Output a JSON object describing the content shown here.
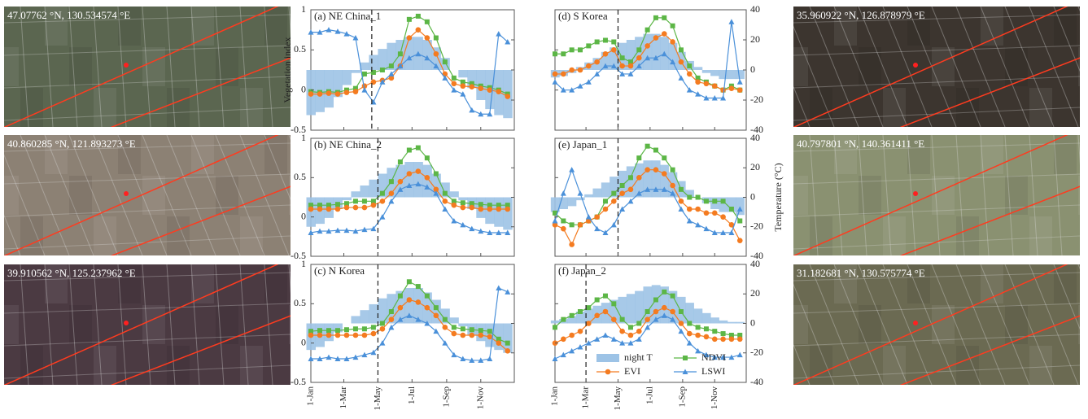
{
  "images": [
    {
      "label": "47.07762 °N, 130.534574 °E",
      "color": "#5b6650"
    },
    {
      "label": "40.860285 °N, 121.893273 °E",
      "color": "#8c8174"
    },
    {
      "label": "39.910562 °N, 125.237962 °E",
      "color": "#4b3a42"
    },
    {
      "label": "35.960922 °N, 126.878979 °E",
      "color": "#3c352f"
    },
    {
      "label": "40.797801 °N, 140.361411 °E",
      "color": "#8a9171"
    },
    {
      "label": "31.182681 °N, 130.575774 °E",
      "color": "#6b6a52"
    }
  ],
  "chart_data": [
    {
      "type": "line",
      "title": "(a) NE China_1",
      "ylabel": "Vegetation index",
      "x": [
        1,
        17,
        33,
        49,
        65,
        81,
        97,
        113,
        129,
        145,
        161,
        177,
        193,
        209,
        225,
        241,
        257,
        273,
        289,
        305,
        321,
        337,
        353
      ],
      "xlim": [
        1,
        365
      ],
      "xticks": [
        1,
        60,
        121,
        182,
        244,
        305
      ],
      "ylim": [
        -0.5,
        1
      ],
      "yticks": [
        -0.5,
        0,
        0.5,
        1
      ],
      "y2lim": [
        -40,
        40
      ],
      "y2ticks": [
        -40,
        -20,
        0,
        20,
        40
      ],
      "show_y2tick_labels": false,
      "vline": 110,
      "series": [
        {
          "type": "area",
          "axis": "y2",
          "color": "#9dc3e6",
          "values": [
            -30,
            -28,
            -25,
            -18,
            -10,
            -2,
            5,
            10,
            14,
            18,
            20,
            22,
            22,
            20,
            15,
            8,
            0,
            -5,
            -12,
            -20,
            -26,
            -30,
            -32
          ]
        },
        {
          "color": "#5cb646",
          "marker": "square",
          "values": [
            -0.02,
            -0.03,
            -0.02,
            -0.03,
            0.0,
            0.02,
            0.2,
            0.22,
            0.25,
            0.3,
            0.45,
            0.88,
            0.92,
            0.85,
            0.65,
            0.35,
            0.15,
            0.1,
            0.08,
            0.05,
            0.03,
            0.0,
            -0.05
          ]
        },
        {
          "color": "#f47b20",
          "marker": "circle",
          "values": [
            -0.05,
            -0.05,
            -0.04,
            -0.05,
            -0.03,
            -0.02,
            0.05,
            0.1,
            0.12,
            0.15,
            0.3,
            0.65,
            0.75,
            0.65,
            0.45,
            0.2,
            0.08,
            0.05,
            0.04,
            0.02,
            0.0,
            -0.02,
            -0.08
          ]
        },
        {
          "color": "#4a90d9",
          "marker": "triangle",
          "values": [
            0.72,
            0.72,
            0.75,
            0.73,
            0.7,
            0.65,
            0.0,
            -0.15,
            0.1,
            0.2,
            0.3,
            0.4,
            0.45,
            0.4,
            0.3,
            0.15,
            0.0,
            -0.05,
            -0.25,
            -0.3,
            -0.3,
            0.7,
            0.6
          ]
        }
      ]
    },
    {
      "type": "line",
      "title": "(b) NE China_2",
      "x": [
        1,
        17,
        33,
        49,
        65,
        81,
        97,
        113,
        129,
        145,
        161,
        177,
        193,
        209,
        225,
        241,
        257,
        273,
        289,
        305,
        321,
        337,
        353
      ],
      "xlim": [
        1,
        365
      ],
      "xticks": [
        1,
        60,
        121,
        182,
        244,
        305
      ],
      "ylim": [
        -0.5,
        1
      ],
      "yticks": [
        -0.5,
        0,
        0.5,
        1
      ],
      "y2lim": [
        -40,
        40
      ],
      "y2ticks": [
        -40,
        -20,
        0,
        20,
        40
      ],
      "show_y2tick_labels": false,
      "vline": 121,
      "series": [
        {
          "type": "area",
          "axis": "y2",
          "color": "#9dc3e6",
          "values": [
            -20,
            -18,
            -14,
            -8,
            -2,
            4,
            8,
            12,
            16,
            20,
            22,
            24,
            24,
            22,
            16,
            10,
            4,
            -2,
            -8,
            -14,
            -18,
            -20,
            -22
          ]
        },
        {
          "color": "#5cb646",
          "marker": "square",
          "values": [
            0.15,
            0.15,
            0.15,
            0.16,
            0.17,
            0.2,
            0.2,
            0.2,
            0.3,
            0.45,
            0.7,
            0.85,
            0.88,
            0.75,
            0.55,
            0.3,
            0.2,
            0.18,
            0.17,
            0.16,
            0.15,
            0.15,
            0.15
          ]
        },
        {
          "color": "#f47b20",
          "marker": "circle",
          "values": [
            0.1,
            0.1,
            0.1,
            0.1,
            0.12,
            0.12,
            0.12,
            0.15,
            0.2,
            0.3,
            0.45,
            0.55,
            0.58,
            0.5,
            0.35,
            0.2,
            0.15,
            0.12,
            0.12,
            0.1,
            0.1,
            0.1,
            0.1
          ]
        },
        {
          "color": "#4a90d9",
          "marker": "triangle",
          "values": [
            -0.2,
            -0.18,
            -0.18,
            -0.17,
            -0.17,
            -0.18,
            -0.16,
            -0.15,
            0.0,
            0.2,
            0.35,
            0.4,
            0.42,
            0.38,
            0.3,
            0.1,
            -0.05,
            -0.1,
            -0.15,
            -0.18,
            -0.2,
            -0.2,
            -0.2
          ]
        }
      ]
    },
    {
      "type": "line",
      "title": "(c) N Korea",
      "x": [
        1,
        17,
        33,
        49,
        65,
        81,
        97,
        113,
        129,
        145,
        161,
        177,
        193,
        209,
        225,
        241,
        257,
        273,
        289,
        305,
        321,
        337,
        353
      ],
      "xlim": [
        1,
        365
      ],
      "xticks": [
        {
          "value": 1,
          "label": "1-Jan"
        },
        {
          "value": 60,
          "label": "1-Mar"
        },
        {
          "value": 121,
          "label": "1-May"
        },
        {
          "value": 182,
          "label": "1-Jul"
        },
        {
          "value": 244,
          "label": "1-Sep"
        },
        {
          "value": 305,
          "label": "1-Nov"
        }
      ],
      "ylim": [
        -0.5,
        1
      ],
      "yticks": [
        -0.5,
        0,
        0.5,
        1
      ],
      "y2lim": [
        -40,
        40
      ],
      "y2ticks": [
        -40,
        -20,
        0,
        20,
        40
      ],
      "show_y2tick_labels": false,
      "vline": 121,
      "series": [
        {
          "type": "area",
          "axis": "y2",
          "color": "#9dc3e6",
          "values": [
            -18,
            -16,
            -12,
            -6,
            0,
            5,
            9,
            13,
            17,
            20,
            22,
            24,
            24,
            21,
            16,
            10,
            4,
            -2,
            -8,
            -12,
            -16,
            -18,
            -20
          ]
        },
        {
          "color": "#5cb646",
          "marker": "square",
          "values": [
            0.15,
            0.16,
            0.16,
            0.16,
            0.17,
            0.18,
            0.18,
            0.2,
            0.25,
            0.4,
            0.6,
            0.78,
            0.72,
            0.6,
            0.45,
            0.3,
            0.2,
            0.18,
            0.17,
            0.16,
            0.15,
            0.05,
            0.0
          ]
        },
        {
          "color": "#f47b20",
          "marker": "circle",
          "values": [
            0.1,
            0.1,
            0.1,
            0.1,
            0.1,
            0.1,
            0.1,
            0.12,
            0.18,
            0.3,
            0.45,
            0.55,
            0.52,
            0.45,
            0.35,
            0.2,
            0.12,
            0.1,
            0.1,
            0.1,
            0.08,
            0.0,
            -0.1
          ]
        },
        {
          "color": "#4a90d9",
          "marker": "triangle",
          "values": [
            -0.2,
            -0.2,
            -0.18,
            -0.2,
            -0.2,
            -0.18,
            -0.15,
            -0.12,
            0.0,
            0.2,
            0.3,
            0.35,
            0.3,
            0.25,
            0.15,
            0.0,
            -0.15,
            -0.2,
            -0.22,
            -0.22,
            -0.2,
            0.7,
            0.65
          ]
        }
      ]
    },
    {
      "type": "line",
      "title": "(d) S Korea",
      "x": [
        1,
        17,
        33,
        49,
        65,
        81,
        97,
        113,
        129,
        145,
        161,
        177,
        193,
        209,
        225,
        241,
        257,
        273,
        289,
        305,
        321,
        337,
        353
      ],
      "xlim": [
        1,
        365
      ],
      "xticks": [
        1,
        60,
        121,
        182,
        244,
        305
      ],
      "ylim": [
        -0.5,
        1
      ],
      "yticks": [
        -0.5,
        0,
        0.5,
        1
      ],
      "show_ytick_labels": false,
      "y2lim": [
        -40,
        40
      ],
      "y2ticks": [
        -40,
        -20,
        0,
        20,
        40
      ],
      "vline": 121,
      "series": [
        {
          "type": "area",
          "axis": "y2",
          "color": "#9dc3e6",
          "values": [
            -5,
            -4,
            -2,
            2,
            5,
            8,
            12,
            15,
            18,
            20,
            22,
            24,
            24,
            22,
            18,
            12,
            6,
            2,
            -2,
            -4,
            -6,
            -6,
            -6
          ]
        },
        {
          "color": "#5cb646",
          "marker": "square",
          "values": [
            0.45,
            0.45,
            0.5,
            0.5,
            0.55,
            0.6,
            0.62,
            0.6,
            0.4,
            0.35,
            0.5,
            0.75,
            0.9,
            0.9,
            0.8,
            0.5,
            0.3,
            0.15,
            0.1,
            0.05,
            0.0,
            0.05,
            0.0
          ]
        },
        {
          "color": "#f47b20",
          "marker": "circle",
          "values": [
            0.2,
            0.2,
            0.25,
            0.25,
            0.3,
            0.35,
            0.45,
            0.5,
            0.3,
            0.3,
            0.4,
            0.55,
            0.65,
            0.7,
            0.6,
            0.35,
            0.2,
            0.1,
            0.08,
            0.05,
            0.0,
            0.02,
            0.0
          ]
        },
        {
          "color": "#4a90d9",
          "marker": "triangle",
          "values": [
            0.1,
            0.0,
            0.0,
            0.05,
            0.1,
            0.2,
            0.3,
            0.3,
            0.2,
            0.2,
            0.3,
            0.4,
            0.4,
            0.45,
            0.35,
            0.15,
            0.0,
            -0.05,
            -0.1,
            -0.1,
            -0.1,
            0.85,
            0.1
          ]
        }
      ]
    },
    {
      "type": "line",
      "title": "(e) Japan_1",
      "y2label": "Temperature (°C)",
      "x": [
        1,
        17,
        33,
        49,
        65,
        81,
        97,
        113,
        129,
        145,
        161,
        177,
        193,
        209,
        225,
        241,
        257,
        273,
        289,
        305,
        321,
        337,
        353
      ],
      "xlim": [
        1,
        365
      ],
      "xticks": [
        1,
        60,
        121,
        182,
        244,
        305
      ],
      "ylim": [
        -0.5,
        1
      ],
      "yticks": [
        -0.5,
        0,
        0.5,
        1
      ],
      "show_ytick_labels": false,
      "y2lim": [
        -40,
        40
      ],
      "y2ticks": [
        -40,
        -20,
        0,
        20,
        40
      ],
      "vline": 121,
      "series": [
        {
          "type": "area",
          "axis": "y2",
          "color": "#9dc3e6",
          "values": [
            -10,
            -8,
            -6,
            -2,
            2,
            6,
            10,
            14,
            18,
            21,
            23,
            25,
            25,
            22,
            17,
            11,
            5,
            0,
            -4,
            -8,
            -10,
            -10,
            -12
          ]
        },
        {
          "color": "#5cb646",
          "marker": "square",
          "values": [
            0.05,
            -0.05,
            -0.1,
            -0.1,
            -0.05,
            0.0,
            0.2,
            0.3,
            0.4,
            0.5,
            0.75,
            0.9,
            0.85,
            0.75,
            0.6,
            0.35,
            0.25,
            0.25,
            0.2,
            0.2,
            0.2,
            0.1,
            -0.05
          ]
        },
        {
          "color": "#f47b20",
          "marker": "circle",
          "values": [
            -0.1,
            -0.15,
            -0.35,
            -0.1,
            -0.05,
            0.0,
            0.1,
            0.2,
            0.3,
            0.35,
            0.5,
            0.6,
            0.6,
            0.55,
            0.4,
            0.2,
            0.1,
            0.1,
            0.05,
            0.05,
            0.0,
            -0.1,
            -0.3
          ]
        },
        {
          "color": "#4a90d9",
          "marker": "triangle",
          "values": [
            -0.05,
            0.3,
            0.6,
            0.3,
            0.0,
            -0.15,
            -0.2,
            -0.1,
            0.1,
            0.2,
            0.3,
            0.35,
            0.35,
            0.35,
            0.3,
            0.1,
            -0.05,
            -0.1,
            -0.15,
            -0.2,
            -0.2,
            -0.2,
            0.1
          ]
        }
      ]
    },
    {
      "type": "line",
      "title": "(f) Japan_2",
      "legend": "lower right",
      "x": [
        1,
        17,
        33,
        49,
        65,
        81,
        97,
        113,
        129,
        145,
        161,
        177,
        193,
        209,
        225,
        241,
        257,
        273,
        289,
        305,
        321,
        337,
        353
      ],
      "xlim": [
        1,
        365
      ],
      "xticks": [
        {
          "value": 1,
          "label": "1-Jan"
        },
        {
          "value": 60,
          "label": "1-Mar"
        },
        {
          "value": 121,
          "label": "1-May"
        },
        {
          "value": 182,
          "label": "1-Jul"
        },
        {
          "value": 244,
          "label": "1-Sep"
        },
        {
          "value": 305,
          "label": "1-Nov"
        }
      ],
      "ylim": [
        -0.5,
        1
      ],
      "yticks": [
        -0.5,
        0,
        0.5,
        1
      ],
      "show_ytick_labels": false,
      "y2lim": [
        -40,
        40
      ],
      "y2ticks": [
        -40,
        -20,
        0,
        20,
        40
      ],
      "vline": 60,
      "series": [
        {
          "name": "night T",
          "type": "area",
          "axis": "y2",
          "color": "#9dc3e6",
          "values": [
            2,
            3,
            5,
            8,
            10,
            12,
            14,
            16,
            18,
            20,
            22,
            25,
            26,
            25,
            22,
            18,
            14,
            10,
            7,
            4,
            2,
            1,
            1
          ]
        },
        {
          "name": "NDVI",
          "color": "#5cb646",
          "marker": "square",
          "values": [
            0.2,
            0.3,
            0.35,
            0.4,
            0.45,
            0.55,
            0.6,
            0.5,
            0.3,
            0.2,
            0.25,
            0.4,
            0.55,
            0.65,
            0.6,
            0.4,
            0.25,
            0.2,
            0.18,
            0.15,
            0.12,
            0.1,
            0.1
          ]
        },
        {
          "name": "EVI",
          "color": "#f47b20",
          "marker": "circle",
          "values": [
            0.0,
            0.05,
            0.1,
            0.15,
            0.25,
            0.35,
            0.4,
            0.3,
            0.15,
            0.1,
            0.15,
            0.3,
            0.4,
            0.45,
            0.4,
            0.25,
            0.12,
            0.1,
            0.08,
            0.05,
            0.05,
            0.05,
            0.05
          ]
        },
        {
          "name": "LSWI",
          "color": "#4a90d9",
          "marker": "triangle",
          "values": [
            -0.2,
            -0.15,
            -0.1,
            -0.05,
            0.0,
            0.05,
            0.1,
            0.05,
            0.0,
            0.0,
            0.05,
            0.2,
            0.3,
            0.35,
            0.3,
            0.15,
            0.0,
            -0.1,
            -0.15,
            -0.18,
            -0.18,
            -0.18,
            -0.15
          ]
        }
      ]
    }
  ]
}
